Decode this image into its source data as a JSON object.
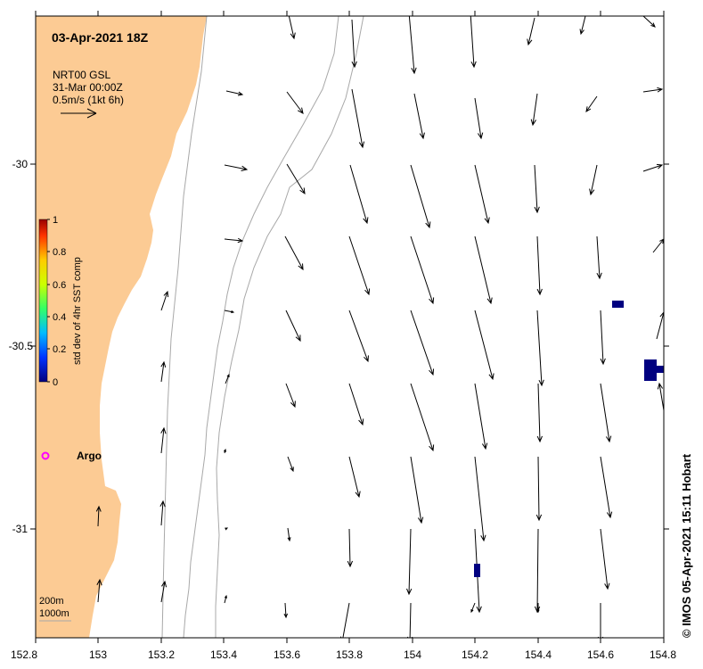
{
  "map": {
    "title": "03-Apr-2021 18Z",
    "legend": {
      "line1": "NRT00 GSL",
      "line2": "31-Mar 00:00Z",
      "line3": "0.5m/s (1kt 6h)"
    },
    "colorbar": {
      "label": "std dev of 4hr SST comp",
      "ticks": [
        "1",
        "0.8",
        "0.6",
        "0.4",
        "0.2",
        "0"
      ]
    },
    "x_ticks": [
      "152.8",
      "153",
      "153.2",
      "153.4",
      "153.6",
      "153.8",
      "154",
      "154.2",
      "154.4",
      "154.6",
      "154.8"
    ],
    "y_ticks": [
      "-30",
      "-30.5",
      "-31"
    ],
    "argo_label": "Argo",
    "contours": [
      "200m",
      "1000m"
    ],
    "credit": "© IMOS 05-Apr-2021 15:11 Hobart",
    "colors": {
      "land": "#fccb94",
      "contour": "#a8a8a8",
      "argo": "#ff00ff",
      "sst_cells": "#000080",
      "arrow": "#000000"
    }
  }
}
